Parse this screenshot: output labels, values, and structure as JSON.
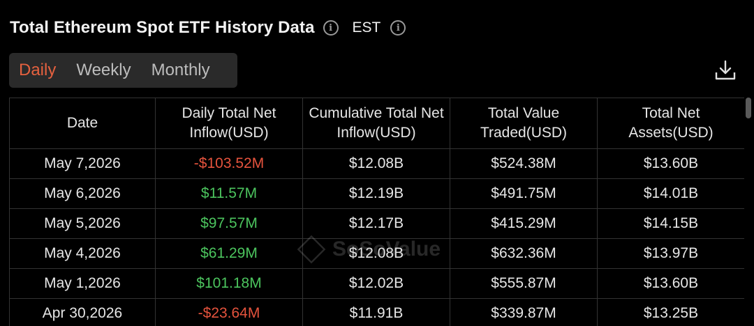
{
  "header": {
    "title": "Total Ethereum Spot ETF History Data",
    "timezone": "EST"
  },
  "tabs": [
    {
      "label": "Daily",
      "active": true
    },
    {
      "label": "Weekly",
      "active": false
    },
    {
      "label": "Monthly",
      "active": false
    }
  ],
  "table": {
    "columns": [
      "Date",
      "Daily Total Net Inflow(USD)",
      "Cumulative Total Net Inflow(USD)",
      "Total Value Traded(USD)",
      "Total Net Assets(USD)"
    ],
    "rows": [
      {
        "date": "May 7,2026",
        "daily": "-$103.52M",
        "sign": "neg",
        "cumulative": "$12.08B",
        "traded": "$524.38M",
        "assets": "$13.60B"
      },
      {
        "date": "May 6,2026",
        "daily": "$11.57M",
        "sign": "pos",
        "cumulative": "$12.19B",
        "traded": "$491.75M",
        "assets": "$14.01B"
      },
      {
        "date": "May 5,2026",
        "daily": "$97.57M",
        "sign": "pos",
        "cumulative": "$12.17B",
        "traded": "$415.29M",
        "assets": "$14.15B"
      },
      {
        "date": "May 4,2026",
        "daily": "$61.29M",
        "sign": "pos",
        "cumulative": "$12.08B",
        "traded": "$632.36M",
        "assets": "$13.97B"
      },
      {
        "date": "May 1,2026",
        "daily": "$101.18M",
        "sign": "pos",
        "cumulative": "$12.02B",
        "traded": "$555.87M",
        "assets": "$13.60B"
      },
      {
        "date": "Apr 30,2026",
        "daily": "-$23.64M",
        "sign": "neg",
        "cumulative": "$11.91B",
        "traded": "$339.87M",
        "assets": "$13.25B"
      }
    ]
  },
  "watermark": "SoSoValue",
  "colors": {
    "accent": "#e5613f",
    "positive": "#4cc45e",
    "negative": "#e5533d",
    "background": "#000000"
  },
  "icons": {
    "info": "info-icon",
    "download": "download-icon"
  }
}
